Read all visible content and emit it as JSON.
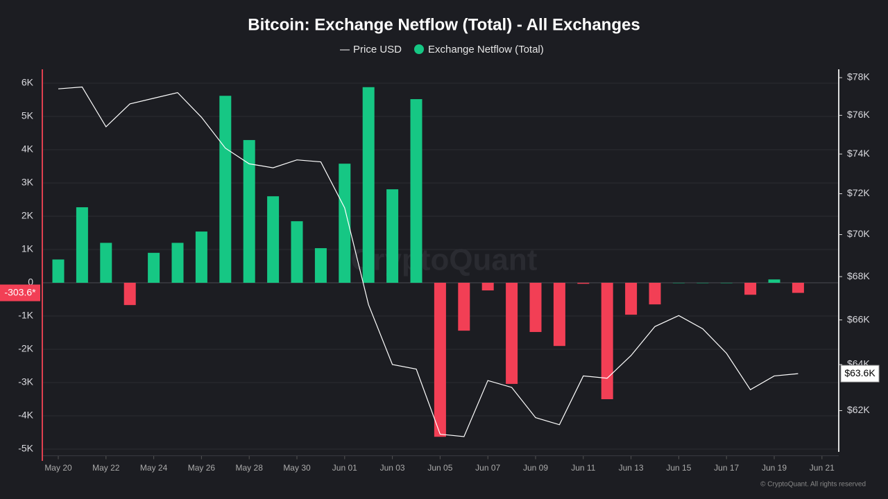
{
  "chart_data": {
    "type": "bar_line",
    "title": "Bitcoin: Exchange Netflow (Total) - All Exchanges",
    "watermark": "CryptoQuant",
    "copyright": "© CryptoQuant. All rights reserved",
    "categories": [
      "May 20",
      null,
      "May 22",
      null,
      "May 24",
      null,
      "May 26",
      null,
      "May 28",
      null,
      "May 30",
      null,
      "Jun 01",
      null,
      "Jun 03",
      null,
      "Jun 05",
      null,
      "Jun 07",
      null,
      "Jun 09",
      null,
      "Jun 11",
      null,
      "Jun 13",
      null,
      "Jun 15",
      null,
      "Jun 17",
      null,
      "Jun 19",
      null,
      "Jun 21"
    ],
    "series": [
      {
        "name": "Exchange Netflow (Total)",
        "type": "bar",
        "color": "#16c784",
        "negative_color": "#f23f55",
        "values": [
          700,
          2270,
          1200,
          -670,
          900,
          1200,
          1540,
          5620,
          4290,
          2600,
          1850,
          1040,
          3580,
          5880,
          2810,
          5520,
          -4630,
          -1440,
          -230,
          -3040,
          -1480,
          -1900,
          -30,
          -3500,
          -960,
          -650,
          0,
          0,
          0,
          -360,
          100,
          -303.6,
          null
        ]
      },
      {
        "name": "Price USD",
        "type": "line",
        "axis": "y2",
        "color": "#ffffff",
        "values": [
          77400,
          77500,
          75400,
          76600,
          76900,
          77200,
          75900,
          74300,
          73500,
          73300,
          73700,
          73600,
          71300,
          66700,
          64000,
          63800,
          61000,
          60900,
          63300,
          63000,
          61700,
          61400,
          63500,
          63400,
          64400,
          65700,
          66200,
          65600,
          64500,
          62900,
          63500,
          63600,
          null
        ]
      }
    ],
    "current_labels": {
      "bar": "-303.6*",
      "line": "$63.6K"
    },
    "ylim": [
      -5200,
      6500
    ],
    "yticks": [
      {
        "value": -5000,
        "label": "-5K"
      },
      {
        "value": -4000,
        "label": "-4K"
      },
      {
        "value": -3000,
        "label": "-3K"
      },
      {
        "value": -2000,
        "label": "-2K"
      },
      {
        "value": -1000,
        "label": "-1K"
      },
      0,
      {
        "value": 1000,
        "label": "1K"
      },
      {
        "value": 2000,
        "label": "2K"
      },
      {
        "value": 3000,
        "label": "3K"
      },
      {
        "value": 4000,
        "label": "4K"
      },
      {
        "value": 5000,
        "label": "5K"
      },
      {
        "value": 6000,
        "label": "6K"
      }
    ],
    "y2lim": [
      60100,
      78600
    ],
    "y2log": true,
    "y2ticks": [
      {
        "value": 62000,
        "label": "$62K"
      },
      {
        "value": 64000,
        "label": "$64K"
      },
      {
        "value": 66000,
        "label": "$66K"
      },
      {
        "value": 68000,
        "label": "$68K"
      },
      {
        "value": 70000,
        "label": "$70K"
      },
      {
        "value": 72000,
        "label": "$72K"
      },
      {
        "value": 74000,
        "label": "$74K"
      },
      {
        "value": 76000,
        "label": "$76K"
      },
      {
        "value": 78000,
        "label": "$78K"
      }
    ],
    "grid": true
  }
}
